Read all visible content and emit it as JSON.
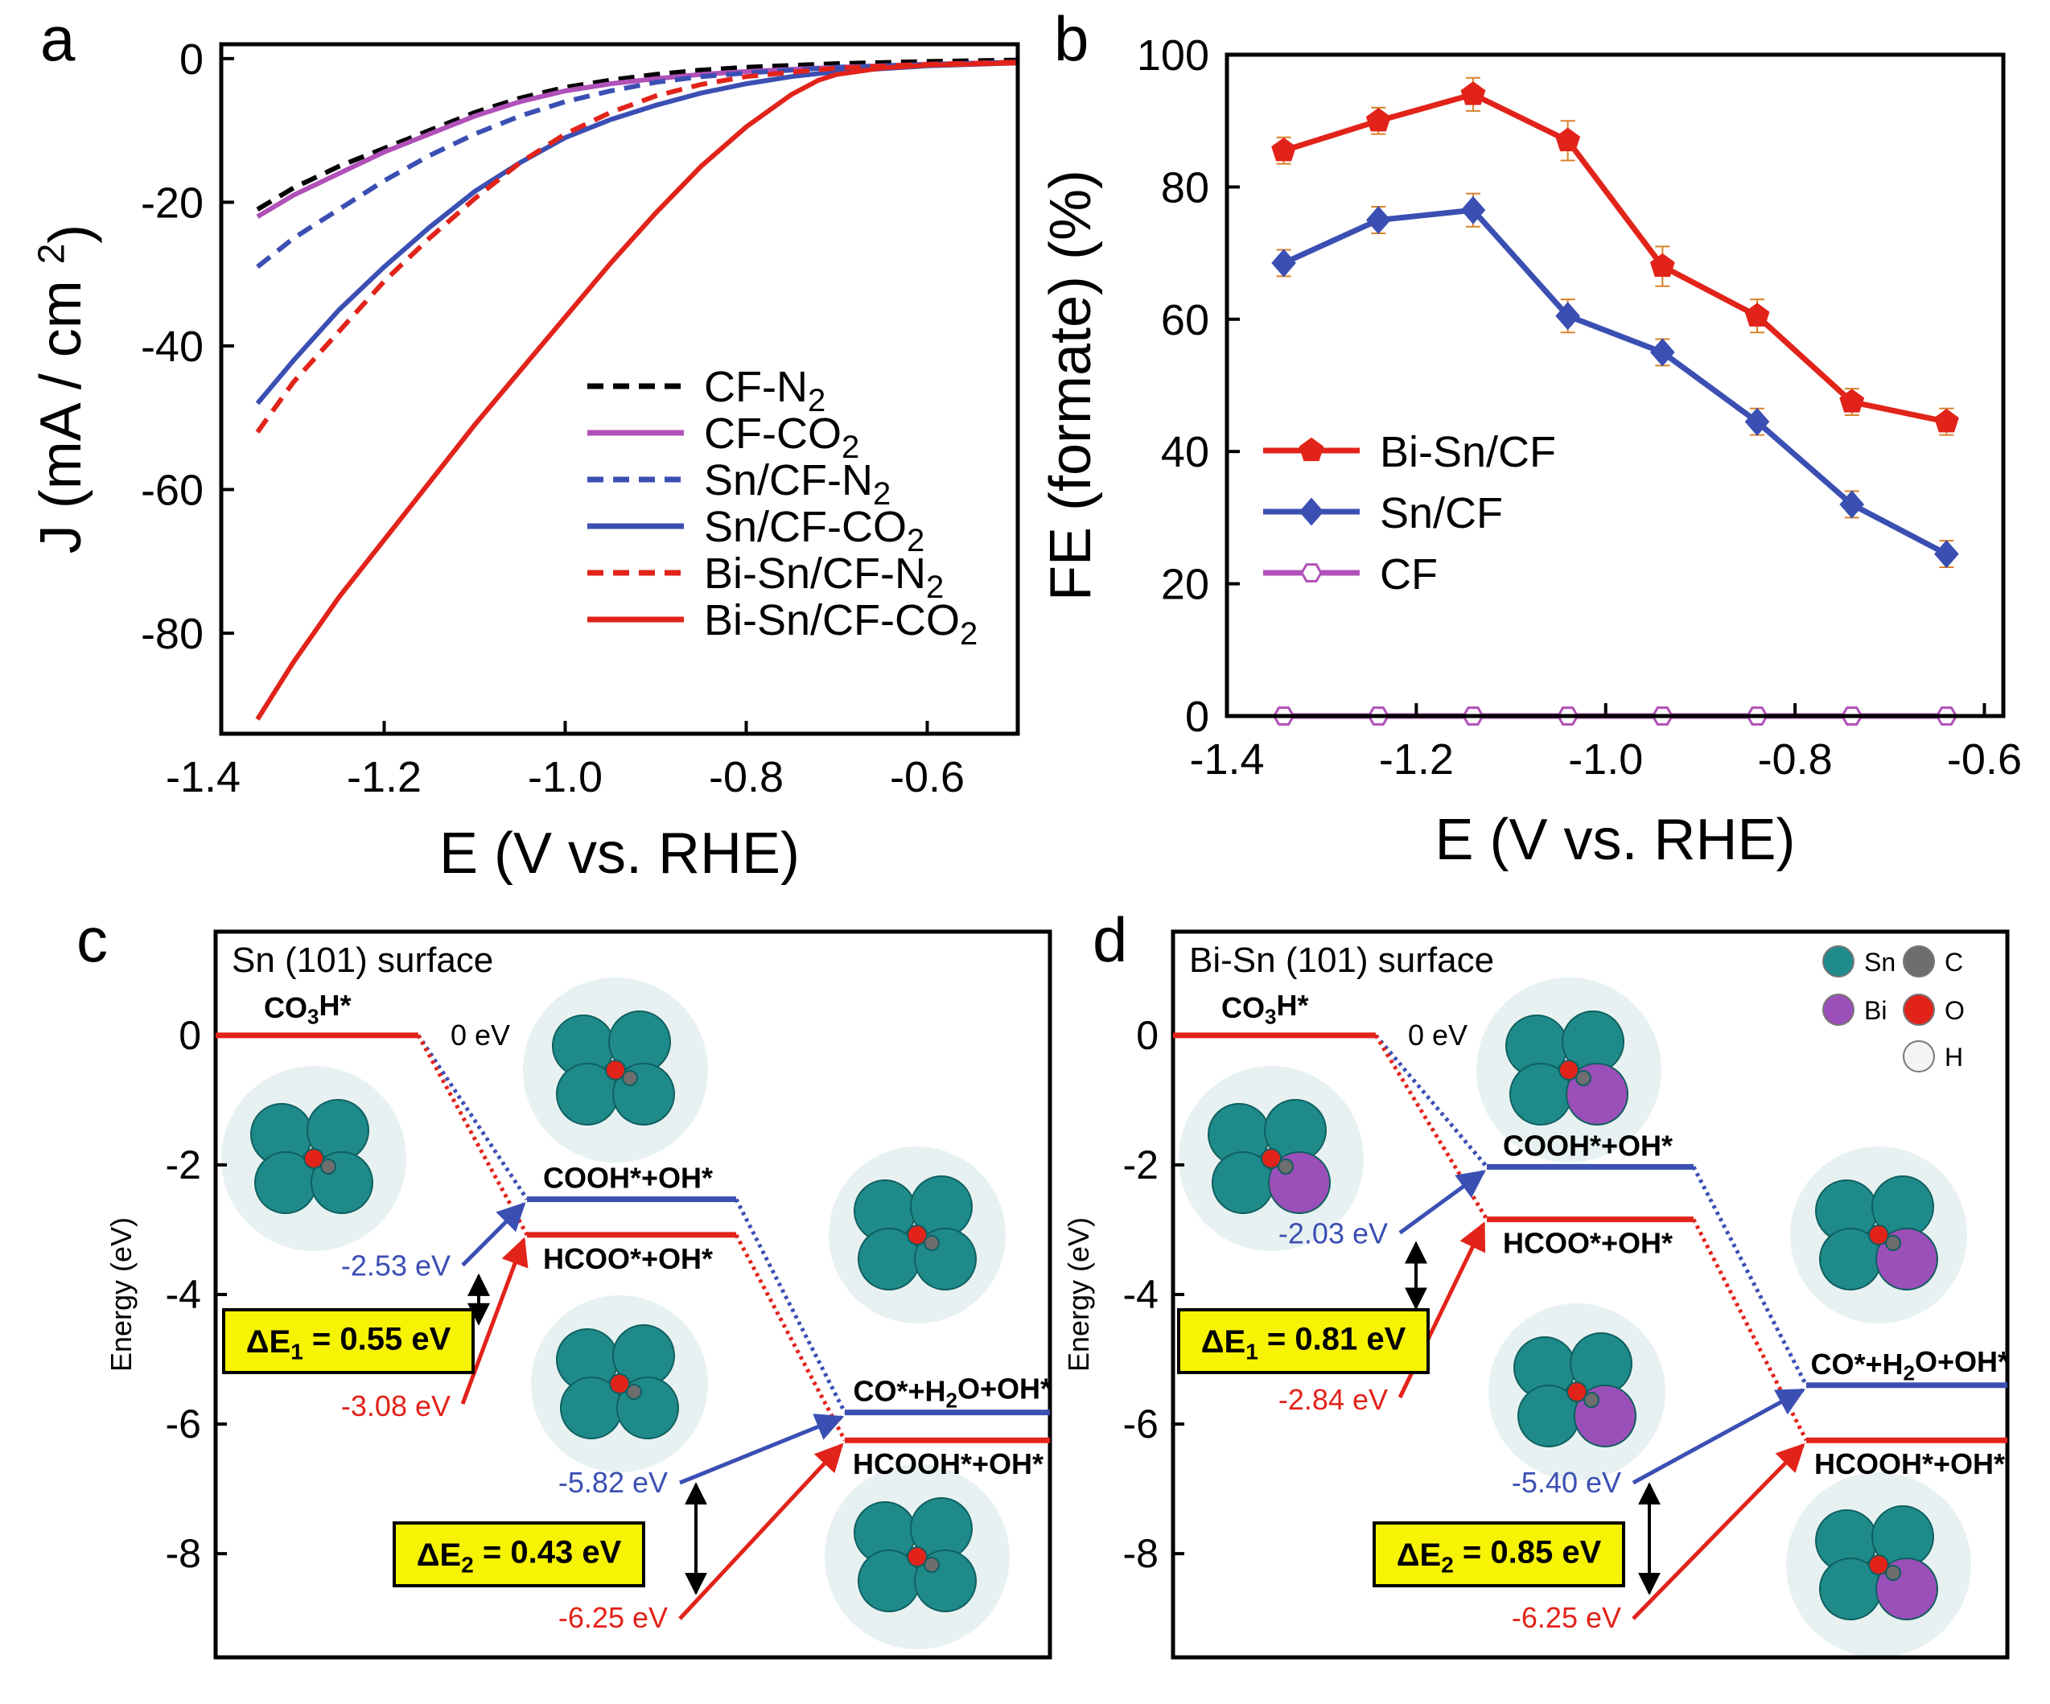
{
  "colors": {
    "black": "#000000",
    "magenta": "#b050b8",
    "blue": "#3b4fb3",
    "red": "#e2231a",
    "teal": "#1f8a8a",
    "yellow": "#f7f305",
    "purple": "#9b4fb8",
    "gray": "#6e6e6e"
  },
  "panels": {
    "a": "a",
    "b": "b",
    "c": "c",
    "d": "d"
  },
  "chart_data": [
    {
      "id": "a",
      "type": "line",
      "xlabel": "E (V vs. RHE)",
      "ylabel": "J (mA / cm ",
      "ylabel_sup": "2",
      "ylabel_close": ")",
      "xlim": [
        -1.38,
        -0.5
      ],
      "ylim": [
        -94,
        2
      ],
      "xticks": [
        -1.4,
        -1.2,
        -1.0,
        -0.8,
        -0.6
      ],
      "xtick_labels": [
        "-1.4",
        "-1.2",
        "-1.0",
        "-0.8",
        "-0.6"
      ],
      "yticks": [
        0,
        -20,
        -40,
        -60,
        -80
      ],
      "ytick_labels": [
        "0",
        "-20",
        "-40",
        "-60",
        "-80"
      ],
      "series": [
        {
          "name": "CF-N",
          "sub": "2",
          "color": "#000000",
          "dash": true,
          "points": [
            [
              -1.34,
              -21
            ],
            [
              -1.3,
              -18
            ],
            [
              -1.25,
              -15
            ],
            [
              -1.2,
              -12.5
            ],
            [
              -1.15,
              -10
            ],
            [
              -1.1,
              -7.5
            ],
            [
              -1.05,
              -5.5
            ],
            [
              -1.0,
              -4
            ],
            [
              -0.95,
              -3
            ],
            [
              -0.9,
              -2.2
            ],
            [
              -0.85,
              -1.6
            ],
            [
              -0.8,
              -1.2
            ],
            [
              -0.7,
              -0.7
            ],
            [
              -0.6,
              -0.4
            ],
            [
              -0.5,
              -0.2
            ]
          ]
        },
        {
          "name": "CF-CO",
          "sub": "2",
          "color": "#b050b8",
          "dash": false,
          "points": [
            [
              -1.34,
              -22
            ],
            [
              -1.3,
              -19
            ],
            [
              -1.25,
              -16
            ],
            [
              -1.2,
              -13
            ],
            [
              -1.15,
              -10.5
            ],
            [
              -1.1,
              -8
            ],
            [
              -1.05,
              -6
            ],
            [
              -1.0,
              -4.5
            ],
            [
              -0.95,
              -3.5
            ],
            [
              -0.9,
              -2.8
            ],
            [
              -0.85,
              -2.2
            ],
            [
              -0.8,
              -1.8
            ],
            [
              -0.7,
              -1.2
            ],
            [
              -0.6,
              -0.8
            ],
            [
              -0.5,
              -0.5
            ]
          ]
        },
        {
          "name": "Sn/CF-N",
          "sub": "2",
          "color": "#3b4fb3",
          "dash": true,
          "points": [
            [
              -1.34,
              -29
            ],
            [
              -1.3,
              -25
            ],
            [
              -1.25,
              -21
            ],
            [
              -1.2,
              -17
            ],
            [
              -1.15,
              -13.5
            ],
            [
              -1.1,
              -10.5
            ],
            [
              -1.05,
              -8
            ],
            [
              -1.0,
              -6
            ],
            [
              -0.95,
              -4.5
            ],
            [
              -0.9,
              -3.3
            ],
            [
              -0.85,
              -2.5
            ],
            [
              -0.8,
              -2
            ],
            [
              -0.7,
              -1.2
            ],
            [
              -0.6,
              -0.8
            ],
            [
              -0.5,
              -0.5
            ]
          ]
        },
        {
          "name": "Sn/CF-CO",
          "sub": "2",
          "color": "#3b4fb3",
          "dash": false,
          "points": [
            [
              -1.34,
              -48
            ],
            [
              -1.3,
              -42
            ],
            [
              -1.25,
              -35
            ],
            [
              -1.2,
              -29
            ],
            [
              -1.15,
              -23.5
            ],
            [
              -1.1,
              -18.5
            ],
            [
              -1.05,
              -14.5
            ],
            [
              -1.0,
              -11
            ],
            [
              -0.95,
              -8.5
            ],
            [
              -0.9,
              -6.5
            ],
            [
              -0.85,
              -4.8
            ],
            [
              -0.8,
              -3.5
            ],
            [
              -0.75,
              -2.5
            ],
            [
              -0.7,
              -1.8
            ],
            [
              -0.6,
              -1.0
            ],
            [
              -0.5,
              -0.6
            ]
          ]
        },
        {
          "name": "Bi-Sn/CF-N",
          "sub": "2",
          "color": "#e2231a",
          "dash": true,
          "points": [
            [
              -1.34,
              -52
            ],
            [
              -1.3,
              -45
            ],
            [
              -1.25,
              -38
            ],
            [
              -1.2,
              -31
            ],
            [
              -1.15,
              -25
            ],
            [
              -1.1,
              -19.5
            ],
            [
              -1.05,
              -14.5
            ],
            [
              -1.0,
              -10.5
            ],
            [
              -0.95,
              -7.5
            ],
            [
              -0.9,
              -5.2
            ],
            [
              -0.85,
              -3.6
            ],
            [
              -0.8,
              -2.5
            ],
            [
              -0.7,
              -1.3
            ],
            [
              -0.6,
              -0.8
            ],
            [
              -0.5,
              -0.5
            ]
          ]
        },
        {
          "name": "Bi-Sn/CF-CO",
          "sub": "2",
          "color": "#e2231a",
          "dash": false,
          "points": [
            [
              -1.34,
              -92
            ],
            [
              -1.3,
              -84
            ],
            [
              -1.25,
              -75
            ],
            [
              -1.2,
              -67
            ],
            [
              -1.15,
              -59
            ],
            [
              -1.1,
              -51
            ],
            [
              -1.05,
              -43.5
            ],
            [
              -1.0,
              -36
            ],
            [
              -0.95,
              -28.5
            ],
            [
              -0.9,
              -21.5
            ],
            [
              -0.85,
              -15
            ],
            [
              -0.8,
              -9.5
            ],
            [
              -0.75,
              -5
            ],
            [
              -0.72,
              -3
            ],
            [
              -0.7,
              -2.2
            ],
            [
              -0.65,
              -1.3
            ],
            [
              -0.6,
              -0.9
            ],
            [
              -0.5,
              -0.6
            ]
          ]
        }
      ],
      "legend_position": "bottom-right"
    },
    {
      "id": "b",
      "type": "line",
      "xlabel": "E (V vs. RHE)",
      "ylabel": "FE (formate) (%)",
      "xlim": [
        -1.4,
        -0.58
      ],
      "ylim": [
        0,
        100
      ],
      "xticks": [
        -1.4,
        -1.2,
        -1.0,
        -0.8,
        -0.6
      ],
      "xtick_labels": [
        "-1.4",
        "-1.2",
        "-1.0",
        "-0.8",
        "-0.6"
      ],
      "yticks": [
        0,
        20,
        40,
        60,
        80,
        100
      ],
      "ytick_labels": [
        "0",
        "20",
        "40",
        "60",
        "80",
        "100"
      ],
      "x": [
        -1.34,
        -1.24,
        -1.14,
        -1.04,
        -0.94,
        -0.84,
        -0.74,
        -0.64
      ],
      "series": [
        {
          "name": "Bi-Sn/CF",
          "color": "#e2231a",
          "marker": "pentagon",
          "values": [
            85.5,
            90,
            94,
            87,
            68,
            60.5,
            47.5,
            44.5
          ],
          "errors": [
            2,
            2,
            2.5,
            3,
            3,
            2.5,
            2,
            2
          ]
        },
        {
          "name": "Sn/CF",
          "color": "#3b4fb3",
          "marker": "diamond",
          "values": [
            68.5,
            75,
            76.5,
            60.5,
            55,
            44.5,
            32,
            24.5
          ],
          "errors": [
            2,
            2,
            2.5,
            2.5,
            2,
            2,
            2,
            2
          ]
        },
        {
          "name": "CF",
          "color": "#b050b8",
          "marker": "hexagon-open",
          "values": [
            0,
            0,
            0,
            0,
            0,
            0,
            0,
            0
          ],
          "errors": [
            0,
            0,
            0,
            0,
            0,
            0,
            0,
            0
          ]
        }
      ],
      "legend_position": "middle-left"
    },
    {
      "id": "c",
      "type": "energy-diagram",
      "title": "Sn (101) surface",
      "ylabel": "Energy (eV)",
      "ylim": [
        -9.6,
        1.6
      ],
      "yticks": [
        0,
        -2,
        -4,
        -6,
        -8
      ],
      "ytick_labels": [
        "0",
        "-2",
        "-4",
        "-6",
        "-8"
      ],
      "levels": [
        {
          "label": "CO",
          "sub": "3",
          "after": "H*",
          "energy": 0,
          "color": "#e2231a"
        },
        {
          "label": "COOH*+OH*",
          "energy": -2.53,
          "color": "#3b4fb3"
        },
        {
          "label": "HCOO*+OH*",
          "energy": -3.08,
          "color": "#e2231a"
        },
        {
          "label": "CO*+H",
          "sub": "2",
          "after": "O+OH*",
          "energy": -5.82,
          "color": "#3b4fb3"
        },
        {
          "label": "HCOOH*+OH*",
          "energy": -6.25,
          "color": "#e2231a"
        }
      ],
      "values": [
        "0 eV",
        "-2.53 eV",
        "-3.08 eV",
        "-5.82 eV",
        "-6.25 eV"
      ],
      "delta1": {
        "label": "ΔE",
        "sub": "1",
        "value": " = 0.55 eV"
      },
      "delta2": {
        "label": "ΔE",
        "sub": "2",
        "value": " = 0.43 eV"
      }
    },
    {
      "id": "d",
      "type": "energy-diagram",
      "title": "Bi-Sn (101) surface",
      "ylabel": "Energy (eV)",
      "ylim": [
        -9.6,
        1.6
      ],
      "yticks": [
        0,
        -2,
        -4,
        -6,
        -8
      ],
      "ytick_labels": [
        "0",
        "-2",
        "-4",
        "-6",
        "-8"
      ],
      "levels": [
        {
          "label": "CO",
          "sub": "3",
          "after": "H*",
          "energy": 0,
          "color": "#e2231a"
        },
        {
          "label": "COOH*+OH*",
          "energy": -2.03,
          "color": "#3b4fb3"
        },
        {
          "label": "HCOO*+OH*",
          "energy": -2.84,
          "color": "#e2231a"
        },
        {
          "label": "CO*+H",
          "sub": "2",
          "after": "O+OH*",
          "energy": -5.4,
          "color": "#3b4fb3"
        },
        {
          "label": "HCOOH*+OH*",
          "energy": -6.25,
          "color": "#e2231a"
        }
      ],
      "values": [
        "0 eV",
        "-2.03 eV",
        "-2.84 eV",
        "-5.40 eV",
        "-6.25 eV"
      ],
      "delta1": {
        "label": "ΔE",
        "sub": "1",
        "value": " = 0.81 eV"
      },
      "delta2": {
        "label": "ΔE",
        "sub": "2",
        "value": " = 0.85 eV"
      },
      "atom_legend": [
        "Sn",
        "C",
        "Bi",
        "O",
        "H"
      ]
    }
  ]
}
